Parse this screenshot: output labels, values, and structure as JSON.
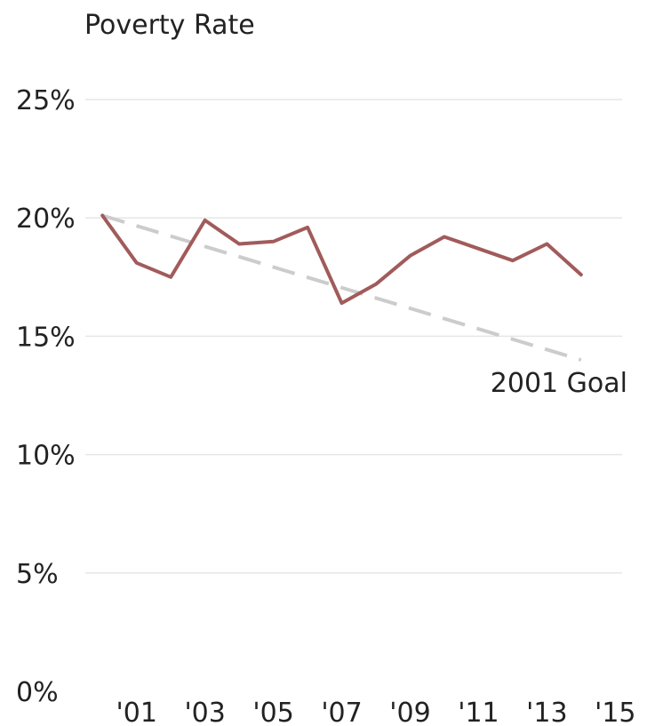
{
  "chart_data": {
    "type": "line",
    "title": "Poverty Rate",
    "xlabel": "",
    "ylabel": "",
    "ylim": [
      0,
      25
    ],
    "xlim": [
      1999.5,
      2015.2
    ],
    "grid": true,
    "y_ticks": [
      {
        "value": 0,
        "label": "0%"
      },
      {
        "value": 5,
        "label": "5%"
      },
      {
        "value": 10,
        "label": "10%"
      },
      {
        "value": 15,
        "label": "15%"
      },
      {
        "value": 20,
        "label": "20%"
      },
      {
        "value": 25,
        "label": "25%"
      }
    ],
    "x_ticks": [
      {
        "value": 2001,
        "label": "'01"
      },
      {
        "value": 2003,
        "label": "'03"
      },
      {
        "value": 2005,
        "label": "'05"
      },
      {
        "value": 2007,
        "label": "'07"
      },
      {
        "value": 2009,
        "label": "'09"
      },
      {
        "value": 2011,
        "label": "'11"
      },
      {
        "value": 2013,
        "label": "'13"
      },
      {
        "value": 2015,
        "label": "'15"
      }
    ],
    "series": [
      {
        "name": "",
        "color": "#a15b5b",
        "style": "solid",
        "points": [
          {
            "x": 2000,
            "y": 20.1
          },
          {
            "x": 2001,
            "y": 18.1
          },
          {
            "x": 2002,
            "y": 17.5
          },
          {
            "x": 2003,
            "y": 19.9
          },
          {
            "x": 2004,
            "y": 18.9
          },
          {
            "x": 2005,
            "y": 19.0
          },
          {
            "x": 2006,
            "y": 19.6
          },
          {
            "x": 2007,
            "y": 16.4
          },
          {
            "x": 2008,
            "y": 17.2
          },
          {
            "x": 2009,
            "y": 18.4
          },
          {
            "x": 2010,
            "y": 19.2
          },
          {
            "x": 2011,
            "y": 18.7
          },
          {
            "x": 2012,
            "y": 18.2
          },
          {
            "x": 2013,
            "y": 18.9
          },
          {
            "x": 2014,
            "y": 17.6
          }
        ]
      },
      {
        "name": "2001 Goal",
        "color": "#cccccc",
        "style": "dashed",
        "points": [
          {
            "x": 2000,
            "y": 20.1
          },
          {
            "x": 2014,
            "y": 14.0
          }
        ]
      }
    ],
    "annotations": [
      {
        "text": "2001 Goal",
        "x": 2014,
        "y": 14.0
      }
    ]
  }
}
